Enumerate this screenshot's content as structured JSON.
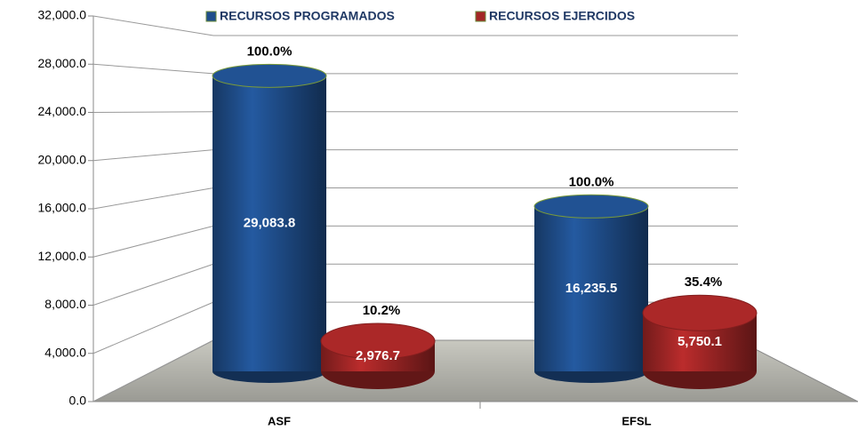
{
  "chart_data": {
    "type": "cylinder",
    "categories": [
      "ASF",
      "EFSL"
    ],
    "series": [
      {
        "name": "RECURSOS PROGRAMADOS",
        "color": "#1f4e8c",
        "values": [
          29083.8,
          16235.5
        ],
        "value_labels": [
          "29,083.8",
          "16,235.5"
        ],
        "percent_labels": [
          "100.0%",
          "100.0%"
        ]
      },
      {
        "name": "RECURSOS EJERCIDOS",
        "color": "#a32626",
        "values": [
          2976.7,
          5750.1
        ],
        "value_labels": [
          "2,976.7",
          "5,750.1"
        ],
        "percent_labels": [
          "10.2%",
          "35.4%"
        ]
      }
    ],
    "ylim": [
      0,
      32000
    ],
    "yticks": [
      {
        "value": 0,
        "label": "0.0"
      },
      {
        "value": 4000,
        "label": "4,000.0"
      },
      {
        "value": 8000,
        "label": "8,000.0"
      },
      {
        "value": 12000,
        "label": "12,000.0"
      },
      {
        "value": 16000,
        "label": "16,000.0"
      },
      {
        "value": 20000,
        "label": "20,000.0"
      },
      {
        "value": 24000,
        "label": "24,000.0"
      },
      {
        "value": 28000,
        "label": "28,000.0"
      },
      {
        "value": 32000,
        "label": "32,000.0"
      }
    ],
    "grid": true,
    "legend": "top"
  }
}
